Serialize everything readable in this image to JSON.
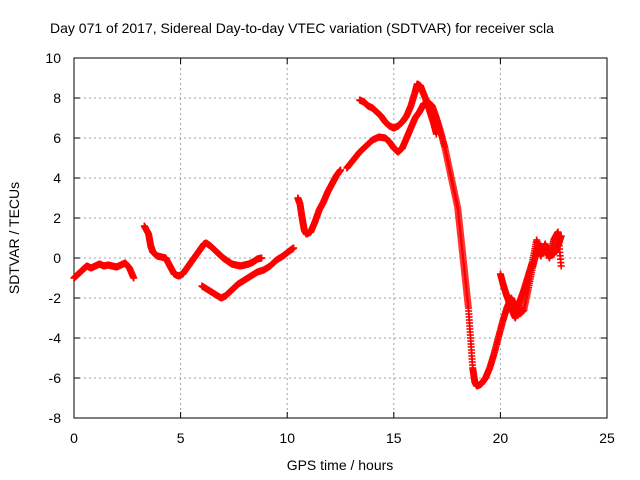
{
  "chart_data": {
    "type": "scatter",
    "title": "Day 071 of 2017, Sidereal Day-to-day VTEC variation (SDTVAR) for receiver scla",
    "xlabel": "GPS time / hours",
    "ylabel": "SDTVAR / TECUs",
    "xlim": [
      0,
      25
    ],
    "ylim": [
      -8,
      10
    ],
    "xticks": [
      "0",
      "5",
      "10",
      "15",
      "20",
      "25"
    ],
    "yticks": [
      "-8",
      "-6",
      "-4",
      "-2",
      "0",
      "2",
      "4",
      "6",
      "8",
      "10"
    ],
    "grid": true,
    "marker": "+",
    "color": "#ff0000",
    "segments": [
      [
        [
          0.0,
          -1.0
        ],
        [
          0.2,
          -0.8
        ],
        [
          0.4,
          -0.6
        ],
        [
          0.6,
          -0.4
        ],
        [
          0.8,
          -0.5
        ],
        [
          1.0,
          -0.4
        ],
        [
          1.2,
          -0.3
        ],
        [
          1.4,
          -0.4
        ],
        [
          1.6,
          -0.35
        ],
        [
          1.8,
          -0.4
        ],
        [
          2.0,
          -0.45
        ],
        [
          2.2,
          -0.35
        ],
        [
          2.4,
          -0.25
        ],
        [
          2.6,
          -0.5
        ],
        [
          2.8,
          -1.0
        ]
      ],
      [
        [
          3.3,
          1.6
        ],
        [
          3.5,
          1.2
        ],
        [
          3.6,
          0.6
        ],
        [
          3.7,
          0.3
        ],
        [
          3.9,
          0.1
        ],
        [
          4.1,
          0.05
        ],
        [
          4.3,
          0.0
        ],
        [
          4.5,
          -0.4
        ],
        [
          4.7,
          -0.8
        ],
        [
          4.9,
          -0.9
        ],
        [
          5.1,
          -0.8
        ],
        [
          5.3,
          -0.5
        ],
        [
          5.5,
          -0.2
        ],
        [
          5.7,
          0.1
        ],
        [
          5.9,
          0.4
        ],
        [
          6.1,
          0.7
        ],
        [
          6.2,
          0.75
        ],
        [
          6.4,
          0.6
        ],
        [
          6.6,
          0.4
        ],
        [
          6.8,
          0.2
        ],
        [
          7.0,
          0.0
        ],
        [
          7.2,
          -0.15
        ],
        [
          7.4,
          -0.3
        ],
        [
          7.6,
          -0.35
        ],
        [
          7.8,
          -0.4
        ],
        [
          8.0,
          -0.35
        ],
        [
          8.2,
          -0.3
        ],
        [
          8.4,
          -0.2
        ],
        [
          8.6,
          -0.05
        ],
        [
          8.8,
          0.0
        ]
      ],
      [
        [
          6.0,
          -1.4
        ],
        [
          6.3,
          -1.6
        ],
        [
          6.6,
          -1.8
        ],
        [
          6.9,
          -2.0
        ],
        [
          7.1,
          -1.9
        ],
        [
          7.3,
          -1.7
        ],
        [
          7.5,
          -1.5
        ],
        [
          7.7,
          -1.3
        ],
        [
          8.0,
          -1.1
        ],
        [
          8.3,
          -0.9
        ],
        [
          8.6,
          -0.7
        ],
        [
          8.9,
          -0.6
        ],
        [
          9.2,
          -0.4
        ],
        [
          9.5,
          -0.1
        ],
        [
          9.8,
          0.1
        ],
        [
          10.1,
          0.35
        ],
        [
          10.3,
          0.5
        ]
      ],
      [
        [
          10.5,
          3.0
        ],
        [
          10.6,
          2.7
        ],
        [
          10.7,
          2.0
        ],
        [
          10.8,
          1.4
        ],
        [
          10.9,
          1.2
        ],
        [
          11.1,
          1.3
        ],
        [
          11.3,
          1.8
        ],
        [
          11.5,
          2.4
        ],
        [
          11.7,
          2.8
        ],
        [
          11.9,
          3.3
        ],
        [
          12.1,
          3.7
        ],
        [
          12.3,
          4.1
        ],
        [
          12.5,
          4.4
        ]
      ],
      [
        [
          12.8,
          4.5
        ],
        [
          13.1,
          4.9
        ],
        [
          13.4,
          5.3
        ],
        [
          13.7,
          5.6
        ],
        [
          14.0,
          5.9
        ],
        [
          14.3,
          6.05
        ],
        [
          14.6,
          6.0
        ],
        [
          14.8,
          5.8
        ],
        [
          15.0,
          5.5
        ],
        [
          15.2,
          5.3
        ],
        [
          15.4,
          5.5
        ],
        [
          15.6,
          6.0
        ],
        [
          15.8,
          6.5
        ],
        [
          16.0,
          7.0
        ],
        [
          16.2,
          7.3
        ],
        [
          16.4,
          7.7
        ],
        [
          16.6,
          7.8
        ],
        [
          16.8,
          7.6
        ],
        [
          17.0,
          7.0
        ],
        [
          17.2,
          6.3
        ],
        [
          17.4,
          5.5
        ],
        [
          17.6,
          4.5
        ],
        [
          17.8,
          3.5
        ],
        [
          18.0,
          2.5
        ],
        [
          18.1,
          1.5
        ],
        [
          18.2,
          0.5
        ],
        [
          18.3,
          -0.5
        ],
        [
          18.4,
          -1.5
        ],
        [
          18.5,
          -2.5
        ],
        [
          18.6,
          -4.0
        ],
        [
          18.7,
          -5.5
        ],
        [
          18.8,
          -6.2
        ],
        [
          18.9,
          -6.4
        ],
        [
          19.1,
          -6.3
        ],
        [
          19.3,
          -6.0
        ],
        [
          19.5,
          -5.5
        ],
        [
          19.7,
          -4.8
        ],
        [
          19.9,
          -4.0
        ],
        [
          20.1,
          -3.2
        ],
        [
          20.3,
          -2.5
        ],
        [
          20.5,
          -2.0
        ],
        [
          20.7,
          -2.4
        ],
        [
          20.9,
          -2.8
        ],
        [
          21.1,
          -2.6
        ],
        [
          21.3,
          -1.6
        ],
        [
          21.5,
          -0.5
        ],
        [
          21.7,
          0.3
        ],
        [
          21.9,
          0.6
        ],
        [
          22.1,
          0.4
        ],
        [
          22.3,
          0.1
        ],
        [
          22.5,
          0.2
        ],
        [
          22.7,
          0.6
        ],
        [
          22.85,
          1.1
        ]
      ],
      [
        [
          13.4,
          7.9
        ],
        [
          13.6,
          7.8
        ],
        [
          13.8,
          7.6
        ],
        [
          14.0,
          7.5
        ],
        [
          14.2,
          7.3
        ],
        [
          14.4,
          7.1
        ],
        [
          14.6,
          6.8
        ],
        [
          14.8,
          6.6
        ],
        [
          15.0,
          6.5
        ],
        [
          15.2,
          6.6
        ],
        [
          15.4,
          6.8
        ],
        [
          15.6,
          7.1
        ],
        [
          15.8,
          7.6
        ],
        [
          16.0,
          8.3
        ],
        [
          16.1,
          8.7
        ],
        [
          16.25,
          8.6
        ],
        [
          16.4,
          8.2
        ],
        [
          16.55,
          7.8
        ],
        [
          16.7,
          7.3
        ],
        [
          16.85,
          6.8
        ],
        [
          17.0,
          6.2
        ]
      ],
      [
        [
          20.0,
          -0.8
        ],
        [
          20.15,
          -1.4
        ],
        [
          20.3,
          -1.9
        ],
        [
          20.5,
          -2.5
        ],
        [
          20.7,
          -3.0
        ],
        [
          20.9,
          -2.2
        ],
        [
          21.1,
          -1.6
        ],
        [
          21.3,
          -0.9
        ],
        [
          21.5,
          -0.2
        ],
        [
          21.7,
          0.9
        ],
        [
          21.9,
          0.1
        ],
        [
          22.1,
          0.7
        ],
        [
          22.3,
          0.0
        ],
        [
          22.5,
          0.9
        ],
        [
          22.7,
          1.3
        ],
        [
          22.85,
          -0.4
        ]
      ]
    ]
  }
}
